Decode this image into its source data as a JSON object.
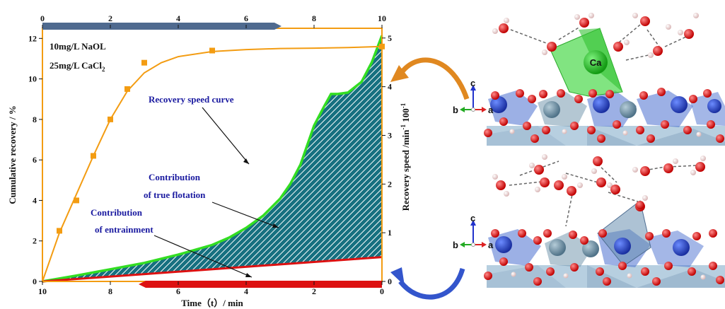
{
  "chart_data": {
    "type": "line",
    "xlabel": "Time（t）/ min",
    "ylabel_left": "Cumulative recovery / %",
    "ylabel_right": "Recovery speed /min",
    "ylabel_right_sup1": "-1",
    "ylabel_right_mid": " 100",
    "ylabel_right_sup2": "-1",
    "x_bottom_ticks": [
      "10",
      "8",
      "6",
      "4",
      "2",
      "0"
    ],
    "x_top_ticks": [
      "0",
      "2",
      "4",
      "6",
      "8",
      "10"
    ],
    "y_left_ticks": [
      "0",
      "2",
      "4",
      "6",
      "8",
      "10",
      "12"
    ],
    "y_right_ticks": [
      "0",
      "1",
      "2",
      "3",
      "4",
      "5"
    ],
    "xlim_top": [
      0,
      10
    ],
    "ylim_left": [
      0,
      12.5
    ],
    "ylim_right": [
      0,
      5.2
    ],
    "conditions": [
      "10mg/L NaOL",
      "25mg/L CaCl"
    ],
    "conditions_sub": "2",
    "cumulative_recovery_points": {
      "x": [
        0.5,
        1.0,
        1.5,
        2.0,
        2.5,
        3.0,
        5.0,
        10.0
      ],
      "y": [
        2.5,
        4.0,
        6.2,
        8.0,
        9.5,
        10.8,
        11.4,
        11.6
      ]
    },
    "cumulative_recovery_fit": {
      "x": [
        0,
        0.5,
        1.0,
        1.5,
        2.0,
        2.5,
        3.0,
        3.5,
        4.0,
        5.0,
        6.0,
        7.0,
        8.0,
        9.0,
        10.0
      ],
      "y": [
        0,
        2.4,
        4.3,
        6.2,
        8.0,
        9.4,
        10.3,
        10.8,
        11.1,
        11.35,
        11.45,
        11.5,
        11.52,
        11.55,
        11.6
      ]
    },
    "recovery_speed_curve": {
      "x": [
        10,
        9,
        8,
        7,
        6,
        5,
        4.5,
        4,
        3.5,
        3,
        2.7,
        2.4,
        2.2,
        2.0,
        1.7,
        1.5,
        1.3,
        1.0,
        0.6,
        0.3,
        0
      ],
      "y": [
        0,
        0.12,
        0.25,
        0.38,
        0.55,
        0.75,
        0.9,
        1.1,
        1.35,
        1.7,
        2.0,
        2.4,
        2.8,
        3.2,
        3.6,
        3.85,
        3.85,
        3.88,
        4.1,
        4.5,
        5.05
      ]
    },
    "entrainment_line": {
      "x": [
        10,
        0
      ],
      "y": [
        0,
        0.5
      ]
    },
    "annotations": {
      "speed_curve": "Recovery speed curve",
      "true_flotation_1": "Contribution",
      "true_flotation_2": "of true flotation",
      "entrainment_1": "Contribution",
      "entrainment_2": "of entrainment"
    },
    "colors": {
      "cumulative": "#f39c12",
      "speed": "#33dd22",
      "entrainment": "#dd1111",
      "hatch_fill": "#167080",
      "top_arrow": "#4f6a8f",
      "bottom_arrow": "#dd1111"
    }
  },
  "structures": {
    "top": {
      "ion_label": "Ca",
      "axes": {
        "c": "c",
        "b": "b",
        "a": "a"
      }
    },
    "bottom": {
      "axes": {
        "c": "c",
        "b": "b",
        "a": "a"
      }
    },
    "colors": {
      "oxygen": "#dd1111",
      "hydrogen": "#f3d6d6",
      "calcium": "#22bb22",
      "calcium_polyhedron": "#4cd94c",
      "slab_polyhedron": "#4a6fd0",
      "slab_atom_blue": "#2244cc",
      "slab_atom_grey": "#6a8fa8",
      "substrate": "#b7cfe0",
      "arrow_orange": "#e08820",
      "arrow_blue": "#3355cc"
    }
  }
}
